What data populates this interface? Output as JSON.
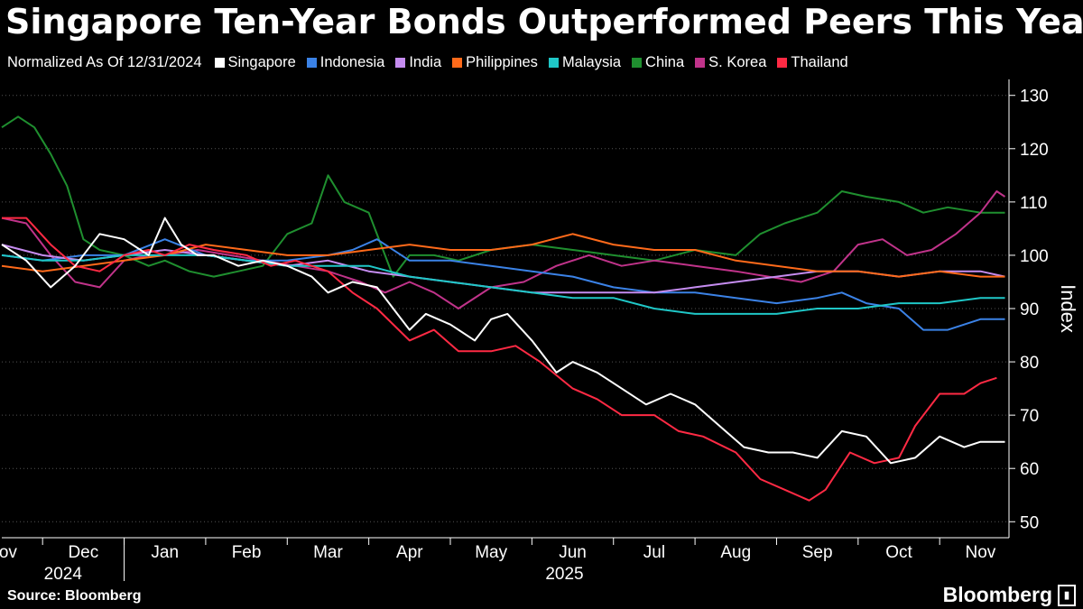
{
  "title": "Singapore Ten-Year Bonds Outperformed Peers This Year",
  "legend": {
    "subtitle": "Normalized As Of 12/31/2024",
    "items": [
      {
        "label": "Singapore",
        "color": "#ffffff"
      },
      {
        "label": "Indonesia",
        "color": "#3b82e6"
      },
      {
        "label": "India",
        "color": "#c58cf0"
      },
      {
        "label": "Philippines",
        "color": "#ff6a1a"
      },
      {
        "label": "Malaysia",
        "color": "#1fc7c7"
      },
      {
        "label": "China",
        "color": "#1f8f2f"
      },
      {
        "label": "S. Korea",
        "color": "#c0338a"
      },
      {
        "label": "Thailand",
        "color": "#ff2a44"
      }
    ]
  },
  "source": "Source: Bloomberg",
  "brand": "Bloomberg",
  "chart_data": {
    "type": "line",
    "ylabel": "Index",
    "ylim": [
      47,
      133
    ],
    "yticks": [
      50,
      60,
      70,
      80,
      90,
      100,
      110,
      120,
      130
    ],
    "xlim": [
      0,
      12.35
    ],
    "month_labels": [
      "Nov",
      "Dec",
      "Jan",
      "Feb",
      "Mar",
      "Apr",
      "May",
      "Jun",
      "Jul",
      "Aug",
      "Sep",
      "Oct",
      "Nov"
    ],
    "month_positions": [
      0,
      1,
      2,
      3,
      4,
      5,
      6,
      7,
      8,
      9,
      10,
      11,
      12
    ],
    "year_labels": [
      {
        "label": "2024",
        "pos": 0.75
      },
      {
        "label": "2025",
        "pos": 6.9
      }
    ],
    "series": [
      {
        "name": "Singapore",
        "color": "#ffffff",
        "x": [
          0,
          0.3,
          0.6,
          0.9,
          1.2,
          1.5,
          1.8,
          2.0,
          2.2,
          2.4,
          2.6,
          2.9,
          3.2,
          3.5,
          3.8,
          4.0,
          4.3,
          4.6,
          4.8,
          5.0,
          5.2,
          5.5,
          5.8,
          6.0,
          6.2,
          6.5,
          6.8,
          7.0,
          7.3,
          7.6,
          7.9,
          8.2,
          8.5,
          8.8,
          9.1,
          9.4,
          9.7,
          10.0,
          10.3,
          10.6,
          10.9,
          11.2,
          11.5,
          11.8,
          12.0,
          12.3
        ],
        "values": [
          102,
          99,
          94,
          98,
          104,
          103,
          100,
          107,
          102,
          100,
          100,
          98,
          99,
          98,
          96,
          93,
          95,
          94,
          90,
          86,
          89,
          87,
          84,
          88,
          89,
          84,
          78,
          80,
          78,
          75,
          72,
          74,
          72,
          68,
          64,
          63,
          63,
          62,
          67,
          66,
          61,
          62,
          66,
          64,
          65,
          65
        ]
      },
      {
        "name": "Indonesia",
        "color": "#3b82e6",
        "x": [
          0,
          0.5,
          1.0,
          1.5,
          2.0,
          2.5,
          3.0,
          3.5,
          4.0,
          4.3,
          4.6,
          5.0,
          5.5,
          6.0,
          6.5,
          7.0,
          7.5,
          8.0,
          8.5,
          9.0,
          9.5,
          10.0,
          10.3,
          10.6,
          11.0,
          11.3,
          11.6,
          12.0,
          12.3
        ],
        "values": [
          100,
          99,
          100,
          100,
          103,
          100,
          99,
          99,
          100,
          101,
          103,
          99,
          99,
          98,
          97,
          96,
          94,
          93,
          93,
          92,
          91,
          92,
          93,
          91,
          90,
          86,
          86,
          88,
          88
        ]
      },
      {
        "name": "India",
        "color": "#c58cf0",
        "x": [
          0,
          0.5,
          1.0,
          1.5,
          2.0,
          2.5,
          3.0,
          3.5,
          4.0,
          4.5,
          5.0,
          5.5,
          6.0,
          6.5,
          7.0,
          7.5,
          8.0,
          8.5,
          9.0,
          9.5,
          10.0,
          10.5,
          11.0,
          11.5,
          12.0,
          12.3
        ],
        "values": [
          102,
          100,
          99,
          100,
          101,
          100,
          99,
          98,
          99,
          97,
          96,
          95,
          94,
          93,
          93,
          93,
          93,
          94,
          95,
          96,
          97,
          97,
          96,
          97,
          97,
          96
        ]
      },
      {
        "name": "Philippines",
        "color": "#ff6a1a",
        "x": [
          0,
          0.5,
          1.0,
          1.5,
          2.0,
          2.5,
          3.0,
          3.5,
          4.0,
          4.5,
          5.0,
          5.5,
          6.0,
          6.5,
          7.0,
          7.5,
          8.0,
          8.5,
          9.0,
          9.5,
          10.0,
          10.5,
          11.0,
          11.5,
          12.0,
          12.3
        ],
        "values": [
          98,
          97,
          98,
          99,
          100,
          102,
          101,
          100,
          100,
          101,
          102,
          101,
          101,
          102,
          104,
          102,
          101,
          101,
          99,
          98,
          97,
          97,
          96,
          97,
          96,
          96
        ]
      },
      {
        "name": "Malaysia",
        "color": "#1fc7c7",
        "x": [
          0,
          0.5,
          1.0,
          1.5,
          2.0,
          2.5,
          3.0,
          3.5,
          4.0,
          4.5,
          5.0,
          5.5,
          6.0,
          6.5,
          7.0,
          7.5,
          8.0,
          8.5,
          9.0,
          9.5,
          10.0,
          10.5,
          11.0,
          11.5,
          12.0,
          12.3
        ],
        "values": [
          100,
          99,
          99,
          100,
          100,
          100,
          99,
          98,
          98,
          98,
          96,
          95,
          94,
          93,
          92,
          92,
          90,
          89,
          89,
          89,
          90,
          90,
          91,
          91,
          92,
          92
        ]
      },
      {
        "name": "China",
        "color": "#1f8f2f",
        "x": [
          0,
          0.2,
          0.4,
          0.6,
          0.8,
          1.0,
          1.2,
          1.5,
          1.8,
          2.0,
          2.3,
          2.6,
          2.9,
          3.2,
          3.5,
          3.8,
          4.0,
          4.2,
          4.5,
          4.8,
          5.0,
          5.3,
          5.6,
          6.0,
          6.5,
          7.0,
          7.5,
          8.0,
          8.5,
          9.0,
          9.3,
          9.6,
          10.0,
          10.3,
          10.6,
          11.0,
          11.3,
          11.6,
          12.0,
          12.3
        ],
        "values": [
          124,
          126,
          124,
          119,
          113,
          103,
          101,
          100,
          98,
          99,
          97,
          96,
          97,
          98,
          104,
          106,
          115,
          110,
          108,
          96,
          100,
          100,
          99,
          101,
          102,
          101,
          100,
          99,
          101,
          100,
          104,
          106,
          108,
          112,
          111,
          110,
          108,
          109,
          108,
          108
        ]
      },
      {
        "name": "S. Korea",
        "color": "#c0338a",
        "x": [
          0,
          0.3,
          0.6,
          0.9,
          1.2,
          1.5,
          1.8,
          2.0,
          2.4,
          2.8,
          3.2,
          3.6,
          4.0,
          4.4,
          4.7,
          5.0,
          5.3,
          5.6,
          6.0,
          6.4,
          6.8,
          7.2,
          7.6,
          8.0,
          8.5,
          9.0,
          9.4,
          9.8,
          10.2,
          10.5,
          10.8,
          11.1,
          11.4,
          11.7,
          12.0,
          12.2,
          12.3
        ],
        "values": [
          107,
          106,
          100,
          95,
          94,
          99,
          100,
          100,
          101,
          100,
          99,
          98,
          97,
          95,
          93,
          95,
          93,
          90,
          94,
          95,
          98,
          100,
          98,
          99,
          98,
          97,
          96,
          95,
          97,
          102,
          103,
          100,
          101,
          104,
          108,
          112,
          111
        ]
      },
      {
        "name": "Thailand",
        "color": "#ff2a44",
        "x": [
          0,
          0.3,
          0.6,
          0.9,
          1.2,
          1.5,
          1.8,
          2.0,
          2.3,
          2.6,
          3.0,
          3.3,
          3.6,
          4.0,
          4.3,
          4.6,
          5.0,
          5.3,
          5.6,
          6.0,
          6.3,
          6.6,
          7.0,
          7.3,
          7.6,
          8.0,
          8.3,
          8.6,
          9.0,
          9.3,
          9.6,
          9.9,
          10.1,
          10.4,
          10.7,
          11.0,
          11.2,
          11.5,
          11.8,
          12.0,
          12.2
        ],
        "values": [
          107,
          107,
          102,
          98,
          97,
          100,
          101,
          100,
          102,
          101,
          100,
          98,
          99,
          97,
          93,
          90,
          84,
          86,
          82,
          82,
          83,
          80,
          75,
          73,
          70,
          70,
          67,
          66,
          63,
          58,
          56,
          54,
          56,
          63,
          61,
          62,
          68,
          74,
          74,
          76,
          77
        ]
      }
    ]
  }
}
